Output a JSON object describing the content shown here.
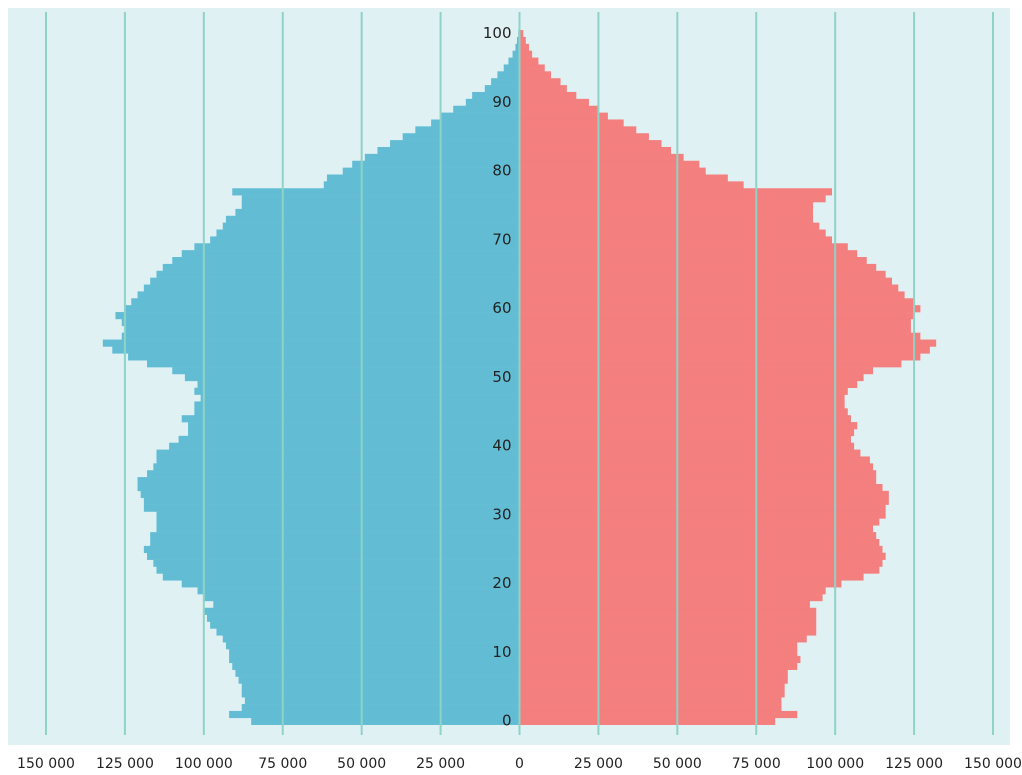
{
  "chart_data": {
    "type": "pyramid",
    "ylim": [
      -2,
      104
    ],
    "yticks": [
      0,
      10,
      20,
      30,
      40,
      50,
      60,
      70,
      80,
      90,
      100
    ],
    "xlim": [
      -150000,
      150000
    ],
    "xticks": [
      {
        "value": -150000,
        "label": "150 000"
      },
      {
        "value": -125000,
        "label": "125 000"
      },
      {
        "value": -100000,
        "label": "100 000"
      },
      {
        "value": -75000,
        "label": "75 000"
      },
      {
        "value": -50000,
        "label": "50 000"
      },
      {
        "value": -25000,
        "label": "25 000"
      },
      0,
      {
        "value": 25000,
        "label": "25 000"
      },
      {
        "value": 50000,
        "label": "50 000"
      },
      {
        "value": 75000,
        "label": "75 000"
      },
      {
        "value": 100000,
        "label": "100 000"
      },
      {
        "value": 125000,
        "label": "125 000"
      },
      {
        "value": 150000,
        "label": "150 000"
      }
    ],
    "grid": true,
    "grid_color": "#8fd3c6",
    "background": "#e0f1f4",
    "series": [
      {
        "color": "#62bdd4",
        "values": [
          -85000,
          -92000,
          -88000,
          -87000,
          -88000,
          -88000,
          -89000,
          -90000,
          -91000,
          -92000,
          -92000,
          -93000,
          -94000,
          -96000,
          -98000,
          -99000,
          -100000,
          -97000,
          -100000,
          -102000,
          -107000,
          -113000,
          -115000,
          -116000,
          -118000,
          -119000,
          -117000,
          -117000,
          -115000,
          -115000,
          -115000,
          -119000,
          -119000,
          -120000,
          -121000,
          -121000,
          -118000,
          -116000,
          -115000,
          -115000,
          -111000,
          -108000,
          -105000,
          -105000,
          -107000,
          -103000,
          -103000,
          -101000,
          -103000,
          -102000,
          -106000,
          -110000,
          -118000,
          -124000,
          -129000,
          -132000,
          -126000,
          -125000,
          -126000,
          -128000,
          -125000,
          -123000,
          -121000,
          -119000,
          -117000,
          -115000,
          -113000,
          -110000,
          -107000,
          -103000,
          -98000,
          -96000,
          -94000,
          -93000,
          -90000,
          -88000,
          -88000,
          -91000,
          -62000,
          -61000,
          -56000,
          -53000,
          -49000,
          -45000,
          -41000,
          -37000,
          -33000,
          -28000,
          -25000,
          -21000,
          -17000,
          -15000,
          -11000,
          -9000,
          -7000,
          -5000,
          -3500,
          -2200,
          -1300,
          -800,
          -400
        ]
      },
      {
        "color": "#f47f7f",
        "values": [
          81000,
          88000,
          83000,
          83000,
          84000,
          84000,
          85000,
          85000,
          88000,
          89000,
          88000,
          88000,
          91000,
          94000,
          94000,
          94000,
          94000,
          92000,
          96000,
          97000,
          102000,
          109000,
          114000,
          115000,
          116000,
          115000,
          114000,
          113000,
          112000,
          114000,
          116000,
          116000,
          117000,
          117000,
          115000,
          113000,
          113000,
          112000,
          111000,
          108000,
          106000,
          105000,
          106000,
          107000,
          105000,
          104000,
          103000,
          103000,
          104000,
          107000,
          109000,
          112000,
          121000,
          127000,
          130000,
          132000,
          127000,
          124000,
          124000,
          125000,
          127000,
          125000,
          122000,
          120000,
          118000,
          116000,
          113000,
          110000,
          107000,
          104000,
          99000,
          97000,
          95000,
          93000,
          93000,
          93000,
          97000,
          99000,
          71000,
          66000,
          59000,
          57000,
          52000,
          48000,
          45000,
          41000,
          37000,
          33000,
          28000,
          25000,
          22000,
          18000,
          15000,
          13000,
          10000,
          8000,
          6000,
          4000,
          3000,
          2000,
          1200
        ]
      }
    ]
  }
}
